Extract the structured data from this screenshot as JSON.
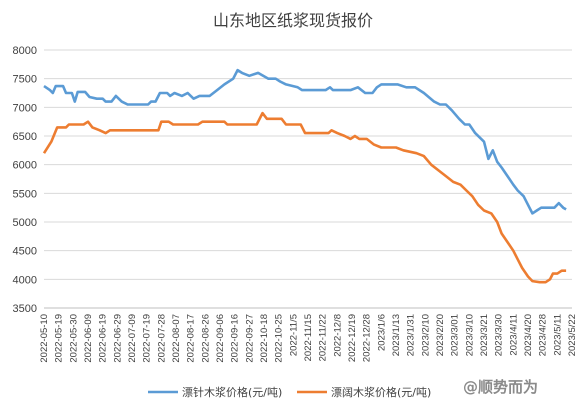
{
  "chart_data": {
    "type": "line",
    "title": "山东地区纸浆现货报价",
    "xlabel": "",
    "ylabel": "",
    "ylim": [
      3500,
      8000
    ],
    "yticks": [
      3500,
      4000,
      4500,
      5000,
      5500,
      6000,
      6500,
      7000,
      7500,
      8000
    ],
    "grid": "horizontal",
    "legend_position": "bottom",
    "x_tick_labels": [
      "2022-05-10",
      "2022-05-19",
      "2022-05-30",
      "2022-06-09",
      "2022-06-19",
      "2022-06-29",
      "2022-07-09",
      "2022-07-19",
      "2022-07-28",
      "2022-08-07",
      "2022-08-17",
      "2022-08-26",
      "2022-09-06",
      "2022-09-16",
      "2022-09-27",
      "2022-10-18",
      "2022-10-25",
      "2022-11/5",
      "2022-11/15",
      "2022-11/22",
      "2022-12/8",
      "2022-12/19",
      "2022-12/28",
      "2023/1/6",
      "2023/1/13",
      "2023/1/31",
      "2023/2/10",
      "2023/2/20",
      "2023/3/01",
      "2023/3/10",
      "2023/3/21",
      "2023/3/30",
      "2023/4/11",
      "2023/4/20",
      "2023/4/28",
      "2023/5/11",
      "2023/5/22"
    ],
    "series": [
      {
        "name": "漂针木浆价格(元/吨)",
        "color": "#5B9BD5",
        "values": [
          [
            0,
            7370
          ],
          [
            0.4,
            7300
          ],
          [
            0.6,
            7250
          ],
          [
            0.8,
            7370
          ],
          [
            1.3,
            7370
          ],
          [
            1.5,
            7250
          ],
          [
            1.9,
            7250
          ],
          [
            2.1,
            7100
          ],
          [
            2.3,
            7270
          ],
          [
            2.8,
            7270
          ],
          [
            3.1,
            7180
          ],
          [
            3.6,
            7150
          ],
          [
            4.0,
            7150
          ],
          [
            4.2,
            7100
          ],
          [
            4.6,
            7100
          ],
          [
            4.9,
            7200
          ],
          [
            5.3,
            7100
          ],
          [
            5.7,
            7050
          ],
          [
            6.3,
            7050
          ],
          [
            7.1,
            7050
          ],
          [
            7.3,
            7100
          ],
          [
            7.6,
            7100
          ],
          [
            7.9,
            7250
          ],
          [
            8.4,
            7250
          ],
          [
            8.6,
            7200
          ],
          [
            8.9,
            7250
          ],
          [
            9.4,
            7200
          ],
          [
            9.8,
            7250
          ],
          [
            10.2,
            7150
          ],
          [
            10.6,
            7200
          ],
          [
            11.3,
            7200
          ],
          [
            11.8,
            7300
          ],
          [
            12.3,
            7400
          ],
          [
            12.9,
            7500
          ],
          [
            13.2,
            7650
          ],
          [
            13.5,
            7600
          ],
          [
            14.0,
            7550
          ],
          [
            14.6,
            7600
          ],
          [
            15.3,
            7500
          ],
          [
            15.8,
            7500
          ],
          [
            16.1,
            7450
          ],
          [
            16.5,
            7400
          ],
          [
            17.3,
            7350
          ],
          [
            17.6,
            7300
          ],
          [
            18.5,
            7300
          ],
          [
            19.2,
            7300
          ],
          [
            19.5,
            7350
          ],
          [
            19.7,
            7300
          ],
          [
            20.3,
            7300
          ],
          [
            20.9,
            7300
          ],
          [
            21.4,
            7350
          ],
          [
            21.9,
            7250
          ],
          [
            22.4,
            7250
          ],
          [
            22.7,
            7350
          ],
          [
            23.0,
            7400
          ],
          [
            24.1,
            7400
          ],
          [
            24.7,
            7350
          ],
          [
            25.3,
            7350
          ],
          [
            25.9,
            7250
          ],
          [
            26.6,
            7100
          ],
          [
            27.0,
            7050
          ],
          [
            27.4,
            7050
          ],
          [
            27.8,
            6950
          ],
          [
            28.3,
            6800
          ],
          [
            28.7,
            6700
          ],
          [
            29.0,
            6700
          ],
          [
            29.4,
            6550
          ],
          [
            30.0,
            6400
          ],
          [
            30.3,
            6100
          ],
          [
            30.6,
            6250
          ],
          [
            30.9,
            6050
          ],
          [
            31.2,
            5950
          ],
          [
            31.6,
            5800
          ],
          [
            32.0,
            5650
          ],
          [
            32.3,
            5550
          ],
          [
            32.7,
            5450
          ],
          [
            33.0,
            5300
          ],
          [
            33.3,
            5150
          ],
          [
            33.6,
            5200
          ],
          [
            33.9,
            5250
          ],
          [
            34.5,
            5250
          ],
          [
            34.8,
            5250
          ],
          [
            35.1,
            5330
          ],
          [
            35.4,
            5250
          ],
          [
            35.6,
            5220
          ]
        ]
      },
      {
        "name": "漂阔木浆价格(元/吨)",
        "color": "#ED7D31",
        "values": [
          [
            0,
            6200
          ],
          [
            0.5,
            6400
          ],
          [
            0.9,
            6650
          ],
          [
            1.5,
            6650
          ],
          [
            1.7,
            6700
          ],
          [
            2.2,
            6700
          ],
          [
            2.7,
            6700
          ],
          [
            3.0,
            6750
          ],
          [
            3.3,
            6650
          ],
          [
            3.8,
            6600
          ],
          [
            4.2,
            6550
          ],
          [
            4.5,
            6600
          ],
          [
            5.0,
            6600
          ],
          [
            6.0,
            6600
          ],
          [
            7.0,
            6600
          ],
          [
            7.8,
            6600
          ],
          [
            8.0,
            6750
          ],
          [
            8.5,
            6750
          ],
          [
            8.8,
            6700
          ],
          [
            9.5,
            6700
          ],
          [
            10.5,
            6700
          ],
          [
            10.8,
            6750
          ],
          [
            11.5,
            6750
          ],
          [
            12.3,
            6750
          ],
          [
            12.5,
            6700
          ],
          [
            13.3,
            6700
          ],
          [
            14.5,
            6700
          ],
          [
            14.9,
            6900
          ],
          [
            15.2,
            6800
          ],
          [
            16.2,
            6800
          ],
          [
            16.5,
            6700
          ],
          [
            17.5,
            6700
          ],
          [
            17.8,
            6550
          ],
          [
            18.6,
            6550
          ],
          [
            19.4,
            6550
          ],
          [
            19.6,
            6600
          ],
          [
            20.0,
            6550
          ],
          [
            20.5,
            6500
          ],
          [
            20.9,
            6450
          ],
          [
            21.2,
            6500
          ],
          [
            21.5,
            6450
          ],
          [
            22.0,
            6450
          ],
          [
            22.5,
            6350
          ],
          [
            23.0,
            6300
          ],
          [
            24.0,
            6300
          ],
          [
            24.5,
            6250
          ],
          [
            25.4,
            6200
          ],
          [
            25.9,
            6150
          ],
          [
            26.4,
            6000
          ],
          [
            26.9,
            5900
          ],
          [
            27.4,
            5800
          ],
          [
            27.9,
            5700
          ],
          [
            28.4,
            5650
          ],
          [
            28.8,
            5550
          ],
          [
            29.2,
            5450
          ],
          [
            29.6,
            5300
          ],
          [
            30.0,
            5200
          ],
          [
            30.5,
            5150
          ],
          [
            30.9,
            5000
          ],
          [
            31.2,
            4800
          ],
          [
            31.6,
            4650
          ],
          [
            32.0,
            4500
          ],
          [
            32.3,
            4350
          ],
          [
            32.6,
            4200
          ],
          [
            33.0,
            4050
          ],
          [
            33.3,
            3970
          ],
          [
            33.8,
            3950
          ],
          [
            34.2,
            3950
          ],
          [
            34.5,
            4000
          ],
          [
            34.7,
            4100
          ],
          [
            35.0,
            4100
          ],
          [
            35.3,
            4150
          ],
          [
            35.6,
            4150
          ]
        ]
      }
    ]
  },
  "watermark": "@顺势而为"
}
